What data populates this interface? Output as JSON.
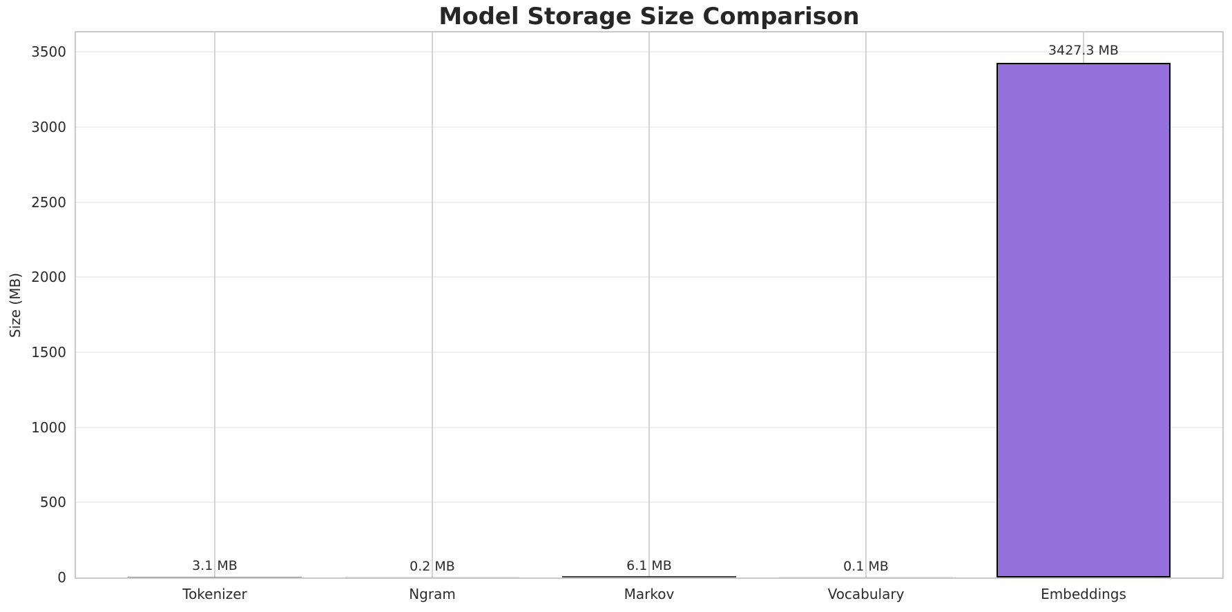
{
  "chart_data": {
    "type": "bar",
    "title": "Model Storage Size Comparison",
    "xlabel": "",
    "ylabel": "Size (MB)",
    "categories": [
      "Tokenizer",
      "Ngram",
      "Markov",
      "Vocabulary",
      "Embeddings"
    ],
    "values": [
      3.1,
      0.2,
      6.1,
      0.1,
      3427.3
    ],
    "bar_labels": [
      "3.1 MB",
      "0.2 MB",
      "6.1 MB",
      "0.1 MB",
      "3427.3 MB"
    ],
    "unit": "MB",
    "ylim": [
      0,
      3630
    ],
    "yticks": [
      0,
      500,
      1000,
      1500,
      2000,
      2500,
      3000,
      3500
    ],
    "grid": true,
    "legend_position": "none",
    "bar_color": "#9370DB",
    "bar_edge_color": "#000000",
    "grid_x_color": "#d2d2d2",
    "grid_y_color": "#f0f0f0",
    "spine_color": "#c9c9c9",
    "text_color": "#2b2b2b"
  }
}
